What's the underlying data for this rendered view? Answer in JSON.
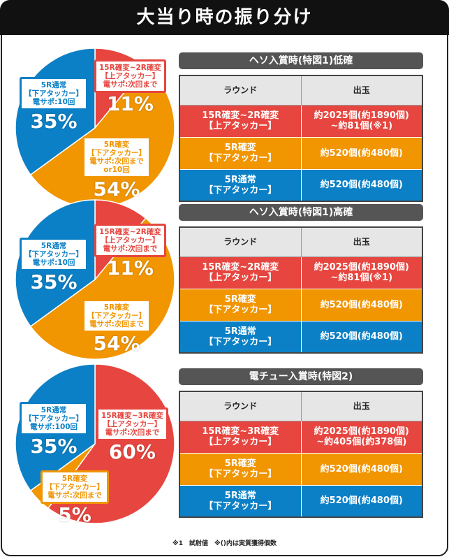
{
  "title": "大当り時の振り分け",
  "colors": {
    "red": "#e6463f",
    "orange": "#f19500",
    "blue": "#0b80c6",
    "header": "#555555"
  },
  "sections": [
    {
      "heading": "ヘソ入賞時(特図1)低確",
      "columns": [
        "ラウンド",
        "出玉"
      ],
      "rows": [
        {
          "round": "15R確変~2R確変\n【上アタッカー】",
          "payout": "約2025個(約1890個)\n~約81個(※1)",
          "color": "red"
        },
        {
          "round": "5R確変\n【下アタッカー】",
          "payout": "約520個(約480個)",
          "color": "orange"
        },
        {
          "round": "5R通常\n【下アタッカー】",
          "payout": "約520個(約480個)",
          "color": "blue"
        }
      ],
      "pie": [
        {
          "label": "15R確変~2R確変\n【上アタッカー】\n電サポ:次回まで",
          "pct": "11%",
          "value": 11,
          "color": "red"
        },
        {
          "label": "5R確変\n【下アタッカー】\n電サポ:次回まで\nor10回",
          "pct": "54%",
          "value": 54,
          "color": "orange"
        },
        {
          "label": "5R通常\n【下アタッカー】\n電サポ:10回",
          "pct": "35%",
          "value": 35,
          "color": "blue"
        }
      ]
    },
    {
      "heading": "ヘソ入賞時(特図1)高確",
      "columns": [
        "ラウンド",
        "出玉"
      ],
      "rows": [
        {
          "round": "15R確変~2R確変\n【上アタッカー】",
          "payout": "約2025個(約1890個)\n~約81個(※1)",
          "color": "red"
        },
        {
          "round": "5R確変\n【下アタッカー】",
          "payout": "約520個(約480個)",
          "color": "orange"
        },
        {
          "round": "5R通常\n【下アタッカー】",
          "payout": "約520個(約480個)",
          "color": "blue"
        }
      ],
      "pie": [
        {
          "label": "15R確変~2R確変\n【上アタッカー】\n電サポ:次回まで",
          "pct": "11%",
          "value": 11,
          "color": "red"
        },
        {
          "label": "5R確変\n【下アタッカー】\n電サポ:次回まで",
          "pct": "54%",
          "value": 54,
          "color": "orange"
        },
        {
          "label": "5R通常\n【下アタッカー】\n電サポ:10回",
          "pct": "35%",
          "value": 35,
          "color": "blue"
        }
      ]
    },
    {
      "heading": "電チュー入賞時(特図2)",
      "columns": [
        "ラウンド",
        "出玉"
      ],
      "rows": [
        {
          "round": "15R確変~3R確変\n【上アタッカー】",
          "payout": "約2025個(約1890個)\n~約405個(約378個)",
          "color": "red"
        },
        {
          "round": "5R確変\n【下アタッカー】",
          "payout": "約520個(約480個)",
          "color": "orange"
        },
        {
          "round": "5R通常\n【下アタッカー】",
          "payout": "約520個(約480個)",
          "color": "blue"
        }
      ],
      "pie": [
        {
          "label": "15R確変~3R確変\n【上アタッカー】\n電サポ:次回まで",
          "pct": "60%",
          "value": 60,
          "color": "red"
        },
        {
          "label": "5R確変\n【下アタッカー】\n電サポ:次回まで",
          "pct": "5%",
          "value": 5,
          "color": "orange"
        },
        {
          "label": "5R通常\n【下アタッカー】\n電サポ:100回",
          "pct": "35%",
          "value": 35,
          "color": "blue"
        }
      ]
    }
  ],
  "note": "※1　試射値　※()内は実質獲得個数"
}
